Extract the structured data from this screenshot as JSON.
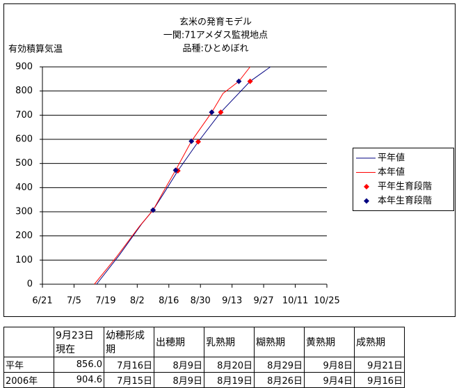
{
  "chart_data": {
    "type": "line",
    "title": [
      "玄米の発育モデル",
      "一関:71アメダス監視地点",
      "品種:ひとめぼれ"
    ],
    "y_label": "有効積算気温",
    "xlim": [
      "6/21",
      "10/25"
    ],
    "xticks": [
      "6/21",
      "7/5",
      "7/19",
      "8/2",
      "8/16",
      "8/30",
      "9/13",
      "9/27",
      "10/11",
      "10/25"
    ],
    "ylim": [
      0,
      900
    ],
    "yticks": [
      0,
      100,
      200,
      300,
      400,
      500,
      600,
      700,
      800,
      900
    ],
    "grid": true,
    "legend": "right",
    "series": [
      {
        "name": "平年値",
        "color": "#000080",
        "marker": "none",
        "x": [
          "7/15",
          "7/25",
          "8/4",
          "8/9",
          "8/14",
          "8/20",
          "8/29",
          "9/8",
          "9/21",
          "9/30"
        ],
        "values": [
          0,
          120,
          250,
          307,
          380,
          470,
          590,
          712,
          840,
          900
        ]
      },
      {
        "name": "本年値",
        "color": "#ff0000",
        "marker": "none",
        "x": [
          "7/14",
          "7/24",
          "8/3",
          "8/9",
          "8/14",
          "8/19",
          "8/26",
          "9/4",
          "9/9",
          "9/16",
          "9/21"
        ],
        "values": [
          0,
          115,
          240,
          307,
          390,
          472,
          592,
          712,
          790,
          840,
          900
        ]
      },
      {
        "name": "平年生育段階",
        "color": "#ff0000",
        "marker": "diamond",
        "x": [
          "8/9",
          "8/20",
          "8/29",
          "9/8",
          "9/21"
        ],
        "values": [
          307,
          470,
          590,
          712,
          840
        ]
      },
      {
        "name": "本年生育段階",
        "color": "#000080",
        "marker": "diamond",
        "x": [
          "8/9",
          "8/19",
          "8/26",
          "9/4",
          "9/16"
        ],
        "values": [
          307,
          472,
          592,
          712,
          840
        ]
      }
    ]
  },
  "table": {
    "header": [
      "",
      "9月23日 現在",
      "幼穂形成期",
      "出穂期",
      "乳熟期",
      "糊熟期",
      "黄熟期",
      "成熟期"
    ],
    "rows": [
      [
        "平年",
        "856.0",
        "7月16日",
        "8月9日",
        "8月20日",
        "8月29日",
        "9月8日",
        "9月21日"
      ],
      [
        "2006年",
        "904.6",
        "7月15日",
        "8月9日",
        "8月19日",
        "8月26日",
        "9月4日",
        "9月16日"
      ]
    ]
  }
}
